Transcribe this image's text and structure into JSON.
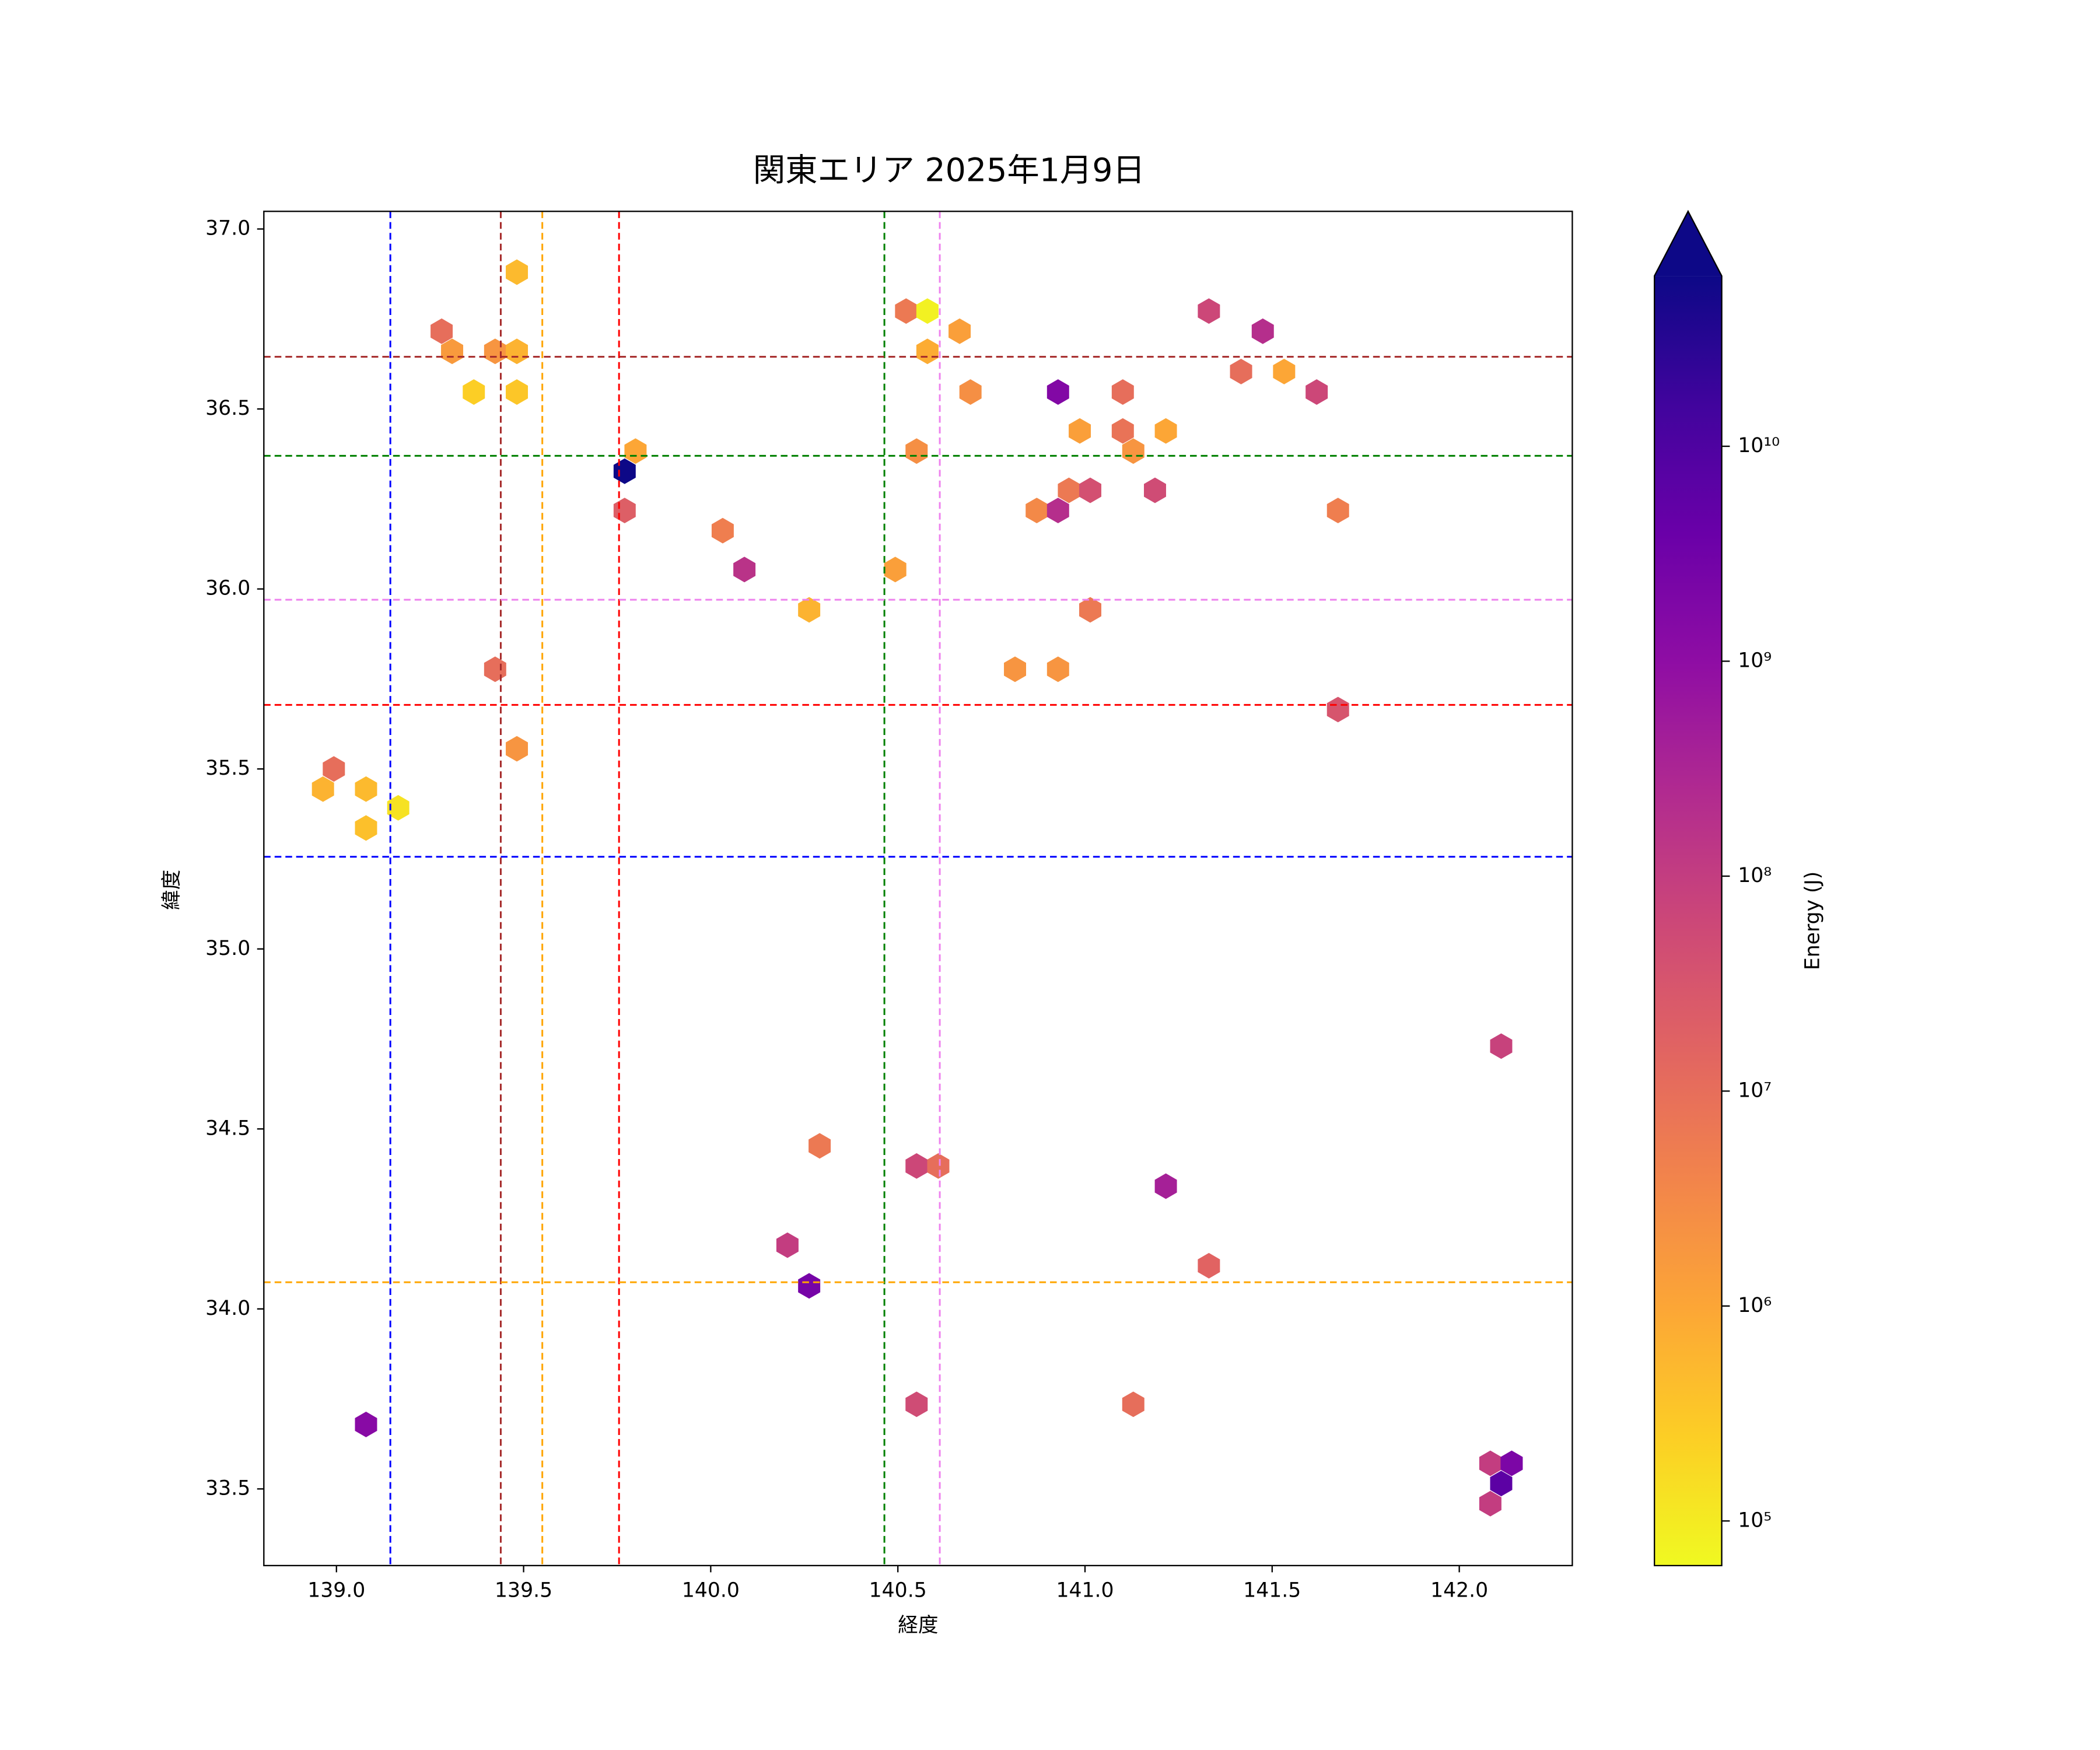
{
  "chart_data": {
    "type": "hexbin",
    "title": "関東エリア 2025年1月9日",
    "x_label": "経度",
    "y_label": "緯度",
    "xlim": [
      138.806,
      142.302
    ],
    "ylim": [
      33.287,
      37.049
    ],
    "xticks": [
      {
        "value": 139,
        "label": "139.0"
      },
      139.5,
      {
        "value": 140,
        "label": "140.0"
      },
      140.5,
      {
        "value": 141,
        "label": "141.0"
      },
      141.5,
      {
        "value": 142,
        "label": "142.0"
      }
    ],
    "yticks": [
      {
        "value": 33.5,
        "label": "33.5"
      },
      {
        "value": 34,
        "label": "34.0"
      },
      34.5,
      {
        "value": 35,
        "label": "35.0"
      },
      35.5,
      {
        "value": 36,
        "label": "36.0"
      },
      36.5,
      {
        "value": 37,
        "label": "37.0"
      }
    ],
    "x": [
      139.482,
      139.281,
      139.309,
      139.424,
      139.482,
      139.367,
      139.482,
      139.799,
      139.77,
      139.77,
      140.032,
      140.09,
      140.263,
      139.424,
      139.482,
      138.993,
      138.964,
      139.079,
      139.079,
      139.165,
      139.079,
      140.522,
      140.579,
      140.665,
      140.579,
      140.694,
      140.55,
      140.493,
      140.928,
      140.986,
      141.101,
      141.101,
      141.129,
      141.216,
      140.871,
      140.928,
      140.957,
      141.014,
      141.187,
      141.014,
      140.813,
      140.928,
      141.331,
      141.475,
      141.417,
      141.532,
      141.619,
      141.676,
      141.676,
      140.291,
      140.55,
      140.608,
      140.205,
      140.263,
      141.216,
      141.331,
      140.55,
      141.129,
      142.112,
      142.083,
      142.14,
      142.112,
      142.083
    ],
    "y": [
      36.88,
      36.716,
      36.66,
      36.66,
      36.66,
      36.547,
      36.547,
      36.383,
      36.327,
      36.218,
      36.162,
      36.054,
      35.942,
      35.777,
      35.556,
      35.5,
      35.444,
      35.444,
      35.336,
      35.392,
      33.679,
      36.772,
      36.772,
      36.716,
      36.66,
      36.547,
      36.383,
      36.054,
      36.547,
      36.439,
      36.547,
      36.439,
      36.383,
      36.439,
      36.218,
      36.218,
      36.274,
      36.274,
      36.274,
      35.942,
      35.777,
      35.777,
      36.772,
      36.716,
      36.604,
      36.604,
      36.547,
      36.218,
      35.665,
      34.453,
      34.397,
      34.397,
      34.177,
      34.064,
      34.341,
      34.12,
      33.735,
      33.735,
      34.73,
      33.571,
      33.571,
      33.515,
      33.459
    ],
    "values": [
      500000,
      10000000,
      1600000,
      2000000,
      630000,
      250000,
      320000,
      1000000,
      70000000000,
      20000000,
      5000000,
      160000000,
      630000,
      10000000,
      2000000,
      10000000,
      630000,
      500000,
      400000,
      130000,
      1300000000,
      6300000,
      80000,
      1300000,
      800000,
      2500000,
      2500000,
      1300000,
      1600000000,
      1300000,
      10000000,
      8000000,
      2000000,
      1000000,
      3200000,
      200000000,
      6300000,
      40000000,
      50000000,
      6300000,
      2000000,
      2000000,
      63000000,
      200000000,
      10000000,
      1000000,
      63000000,
      5000000,
      32000000,
      6300000,
      63000000,
      10000000,
      100000000,
      2500000000,
      400000000,
      16000000,
      50000000,
      10000000,
      80000000,
      100000000,
      2000000000,
      6300000000,
      100000000
    ],
    "cmap": "plasma_r",
    "clim": [
      62000,
      62000000000
    ],
    "extend": "max",
    "log_color": true,
    "clabel": "Energy (J)",
    "cticks": [
      {
        "value": 100000,
        "label": "10⁵"
      },
      {
        "value": 1000000,
        "label": "10⁶"
      },
      {
        "value": 10000000,
        "label": "10⁷"
      },
      {
        "value": 100000000,
        "label": "10⁸"
      },
      {
        "value": 1000000000,
        "label": "10⁹"
      },
      {
        "value": 10000000000,
        "label": "10¹⁰"
      }
    ],
    "vlines": [
      {
        "x": 139.144,
        "color": "blue"
      },
      {
        "x": 139.439,
        "color": "brown"
      },
      {
        "x": 139.55,
        "color": "orange"
      },
      {
        "x": 139.755,
        "color": "red"
      },
      {
        "x": 140.464,
        "color": "green"
      },
      {
        "x": 140.612,
        "color": "violet"
      }
    ],
    "hlines": [
      {
        "y": 36.645,
        "color": "brown"
      },
      {
        "y": 36.37,
        "color": "green"
      },
      {
        "y": 35.97,
        "color": "violet"
      },
      {
        "y": 35.678,
        "color": "red"
      },
      {
        "y": 35.256,
        "color": "blue"
      },
      {
        "y": 34.074,
        "color": "orange"
      }
    ]
  }
}
